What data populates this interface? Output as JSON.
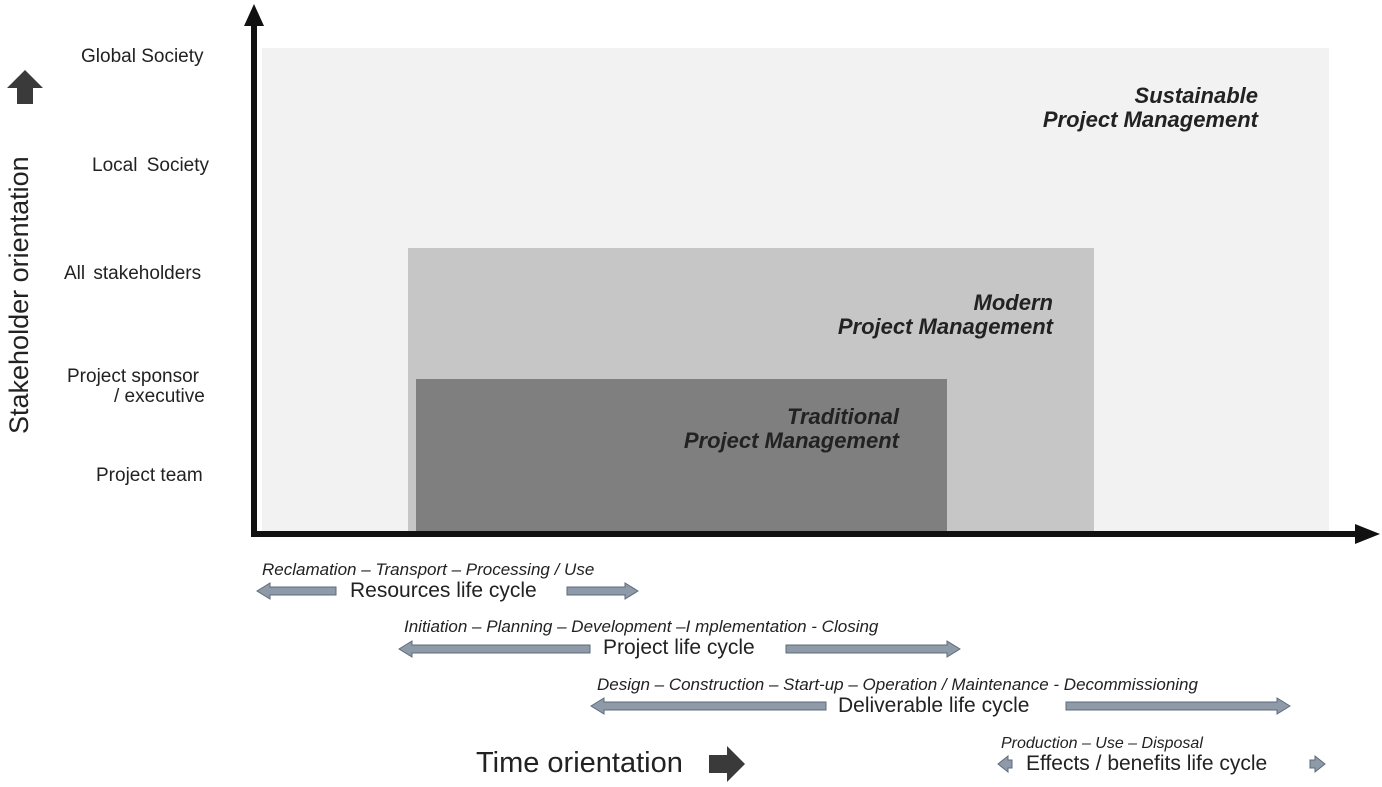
{
  "y_axis": {
    "title": "Stakeholder orientation",
    "levels": [
      "Global Society",
      "Local Society",
      "All stakeholders",
      "Project sponsor",
      "/ executive",
      "Project team"
    ]
  },
  "x_axis": {
    "title": "Time orientation"
  },
  "regions": {
    "sustainable": {
      "line1": "Sustainable",
      "line2": "Project Management",
      "color": "#f2f2f2"
    },
    "modern": {
      "line1": "Modern",
      "line2": "Project Management",
      "color": "#c8c8c8"
    },
    "traditional": {
      "line1": "Traditional",
      "line2": "Project Management",
      "color": "#808080"
    }
  },
  "life_cycles": {
    "resources": {
      "phases": "Reclamation – Transport – Processing / Use",
      "label": "Resources life cycle"
    },
    "project": {
      "phases": "Initiation – Planning – Development –I mplementation - Closing",
      "label": "Project life cycle"
    },
    "deliverable": {
      "phases": "Design – Construction – Start-up – Operation / Maintenance - Decommissioning",
      "label": "Deliverable life cycle"
    },
    "effects": {
      "phases": "Production – Use – Disposal",
      "label": "Effects / benefits life cycle"
    }
  },
  "colors": {
    "axis": "#111111",
    "arrow_fill": "#8e9aa8",
    "arrow_stroke": "#5d6b7a",
    "block_arrow": "#3a3a3a"
  }
}
